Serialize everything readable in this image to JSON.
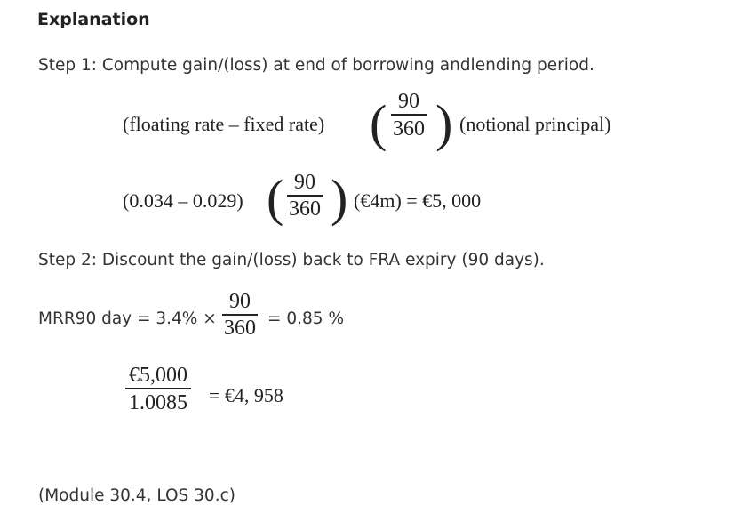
{
  "heading": "Explanation",
  "step1": {
    "text": "Step 1: Compute gain/(loss) at end of borrowing andlending period.",
    "formula_left": "(floating rate – fixed rate)",
    "formula_num": "90",
    "formula_den": "360",
    "formula_right": "(notional principal)",
    "calc_left": "(0.034 – 0.029)",
    "calc_num": "90",
    "calc_den": "360",
    "calc_right": "(€4m) = €5, 000"
  },
  "step2": {
    "text": "Step 2: Discount the gain/(loss) back to FRA expiry (90 days).",
    "mrr_left": "MRR90 day = 3.4% ×",
    "mrr_num": "90",
    "mrr_den": "360",
    "mrr_right": "= 0.85 %",
    "disc_num": "€5,000",
    "disc_den": "1.0085",
    "disc_right": "= €4, 958"
  },
  "reference": "(Module 30.4, LOS 30.c)"
}
